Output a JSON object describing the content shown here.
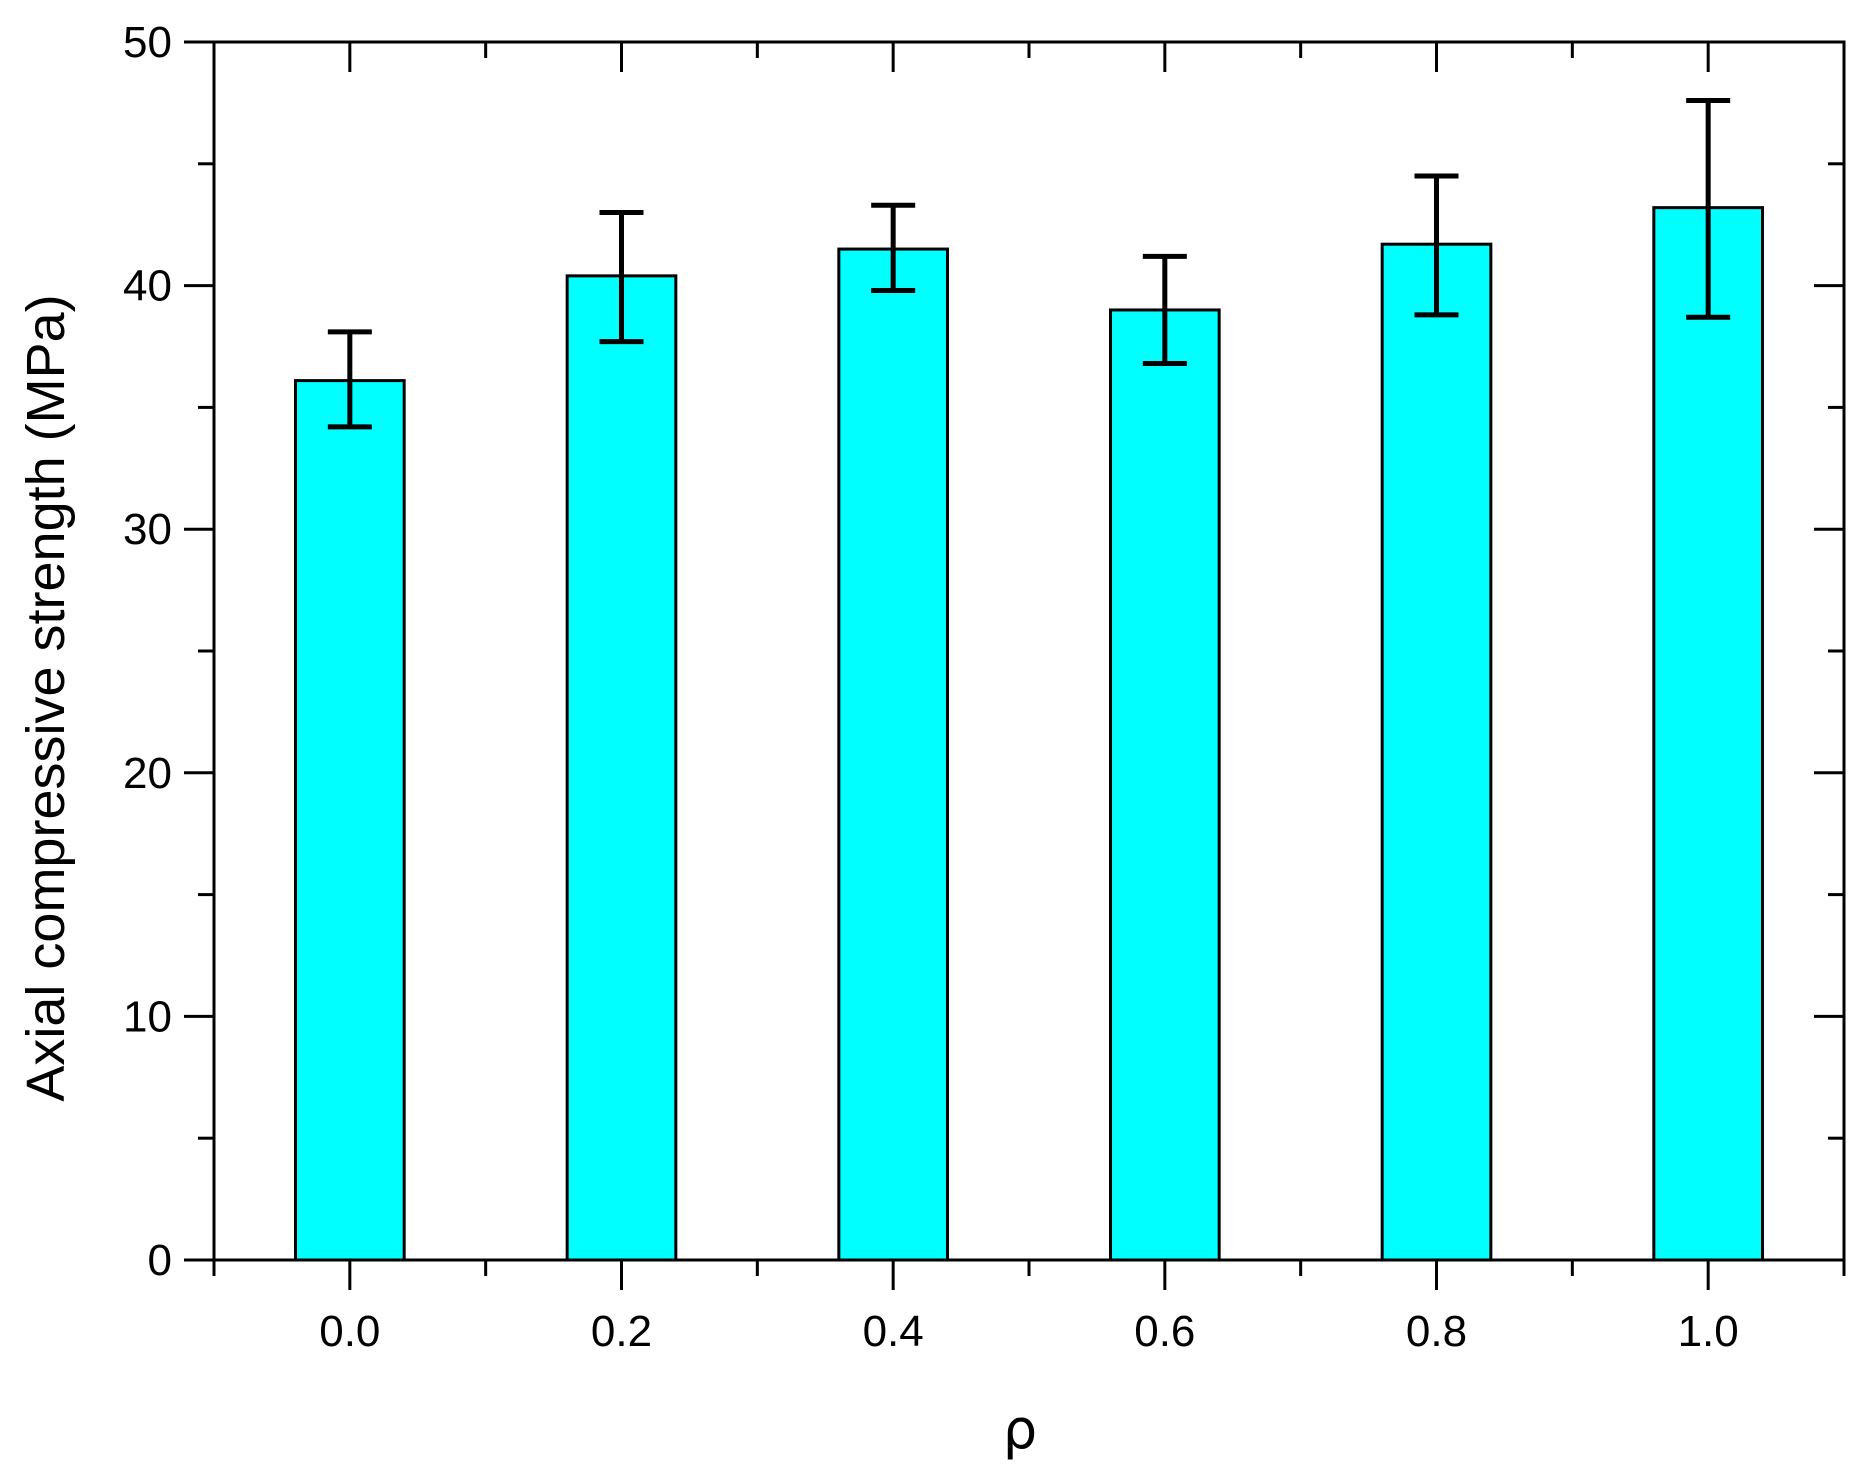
{
  "chart_data": {
    "type": "bar",
    "title": "",
    "xlabel": "ρ",
    "ylabel": "Axial compressive strength (MPa)",
    "categories": [
      "0.0",
      "0.2",
      "0.4",
      "0.6",
      "0.8",
      "1.0"
    ],
    "values": [
      36.1,
      40.4,
      41.5,
      39.0,
      41.7,
      43.2
    ],
    "error_low": [
      34.2,
      37.7,
      39.8,
      36.8,
      38.8,
      38.7
    ],
    "error_high": [
      38.1,
      43.0,
      43.3,
      41.2,
      44.5,
      47.6
    ],
    "ylim": [
      0,
      50
    ],
    "yticks": [
      "0",
      "10",
      "20",
      "30",
      "40",
      "50"
    ],
    "grid": false,
    "bar_color": "#00FFFF",
    "edge_color": "#000000"
  }
}
